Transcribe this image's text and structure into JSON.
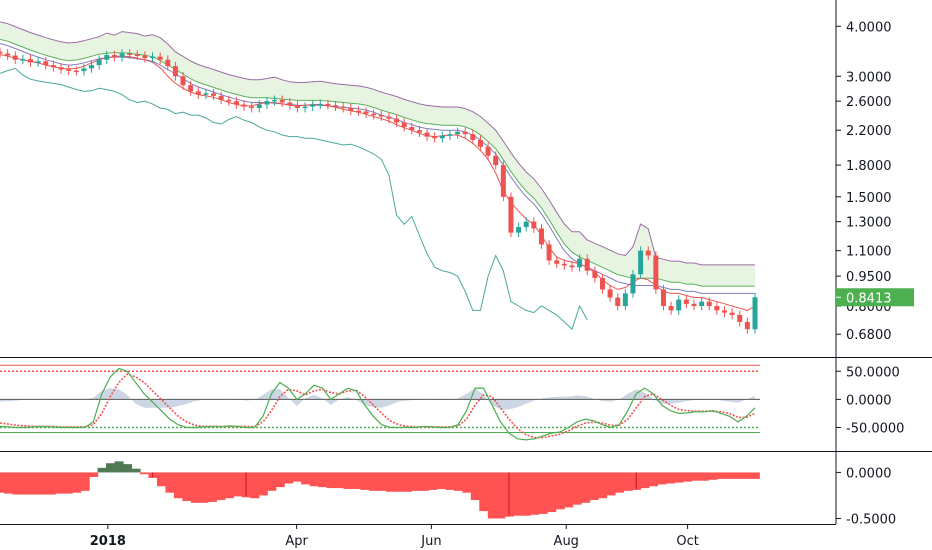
{
  "chart_data": [
    {
      "pane": "price",
      "type": "candlestick",
      "scale": "log",
      "ylim": [
        0.6,
        4.6
      ],
      "y_ticks": [
        "4.0000",
        "3.0000",
        "2.6000",
        "2.2000",
        "1.8000",
        "1.5000",
        "1.3000",
        "1.1000",
        "0.9500",
        "0.8000",
        "0.6800"
      ],
      "y_tick_values": [
        4.0,
        3.0,
        2.6,
        2.2,
        1.8,
        1.5,
        1.3,
        1.1,
        0.95,
        0.8,
        0.68
      ],
      "last_price_label": "0.8413",
      "last_price": 0.8413,
      "colors": {
        "up": "#26a69a",
        "down": "#ef5350",
        "cloud": "#dff0d8",
        "tenkan": "#ef5350",
        "kijun": "#7e7ec0",
        "lagging": "#4aa79a",
        "span_a": "#5ab15a",
        "span_b": "#9c6ca8",
        "price_tag": "#4caf50"
      },
      "candles_close": [
        3.42,
        3.38,
        3.3,
        3.31,
        3.25,
        3.27,
        3.2,
        3.16,
        3.12,
        3.1,
        3.09,
        3.14,
        3.2,
        3.3,
        3.39,
        3.35,
        3.42,
        3.4,
        3.38,
        3.33,
        3.36,
        3.3,
        3.18,
        3.0,
        2.85,
        2.75,
        2.7,
        2.72,
        2.68,
        2.62,
        2.6,
        2.55,
        2.52,
        2.5,
        2.55,
        2.6,
        2.62,
        2.58,
        2.54,
        2.5,
        2.52,
        2.55,
        2.56,
        2.54,
        2.52,
        2.5,
        2.46,
        2.45,
        2.42,
        2.4,
        2.38,
        2.35,
        2.3,
        2.24,
        2.2,
        2.17,
        2.12,
        2.1,
        2.13,
        2.15,
        2.18,
        2.15,
        2.08,
        2.0,
        1.9,
        1.8,
        1.5,
        1.22,
        1.26,
        1.3,
        1.25,
        1.14,
        1.04,
        1.02,
        1.01,
        1.0,
        1.05,
        0.98,
        0.94,
        0.88,
        0.84,
        0.8,
        0.86,
        0.96,
        1.1,
        1.07,
        0.88,
        0.8,
        0.78,
        0.83,
        0.81,
        0.8,
        0.82,
        0.8,
        0.78,
        0.77,
        0.76,
        0.73,
        0.7,
        0.8413
      ],
      "tenkan": [
        3.4,
        3.37,
        3.33,
        3.3,
        3.27,
        3.24,
        3.2,
        3.17,
        3.14,
        3.13,
        3.14,
        3.18,
        3.24,
        3.3,
        3.34,
        3.36,
        3.37,
        3.36,
        3.33,
        3.3,
        3.25,
        3.15,
        3.0,
        2.88,
        2.8,
        2.74,
        2.7,
        2.68,
        2.66,
        2.62,
        2.58,
        2.55,
        2.53,
        2.53,
        2.56,
        2.58,
        2.58,
        2.56,
        2.54,
        2.53,
        2.54,
        2.55,
        2.55,
        2.53,
        2.51,
        2.48,
        2.46,
        2.44,
        2.41,
        2.38,
        2.35,
        2.32,
        2.27,
        2.23,
        2.2,
        2.16,
        2.13,
        2.12,
        2.13,
        2.14,
        2.14,
        2.1,
        2.04,
        1.96,
        1.86,
        1.72,
        1.55,
        1.45,
        1.38,
        1.32,
        1.28,
        1.2,
        1.12,
        1.06,
        1.04,
        1.03,
        1.02,
        1.0,
        0.97,
        0.93,
        0.9,
        0.88,
        0.89,
        0.92,
        0.94,
        0.93,
        0.9,
        0.87,
        0.86,
        0.86,
        0.85,
        0.84,
        0.84,
        0.83,
        0.82,
        0.81,
        0.8,
        0.79,
        0.78,
        0.8
      ],
      "kijun": [
        3.62,
        3.58,
        3.52,
        3.46,
        3.4,
        3.35,
        3.3,
        3.26,
        3.22,
        3.2,
        3.21,
        3.24,
        3.28,
        3.32,
        3.34,
        3.35,
        3.35,
        3.34,
        3.32,
        3.3,
        3.27,
        3.2,
        3.12,
        3.04,
        2.96,
        2.88,
        2.82,
        2.78,
        2.74,
        2.7,
        2.66,
        2.63,
        2.6,
        2.58,
        2.58,
        2.58,
        2.57,
        2.56,
        2.55,
        2.54,
        2.54,
        2.54,
        2.54,
        2.53,
        2.52,
        2.51,
        2.5,
        2.49,
        2.47,
        2.44,
        2.4,
        2.37,
        2.34,
        2.3,
        2.27,
        2.24,
        2.22,
        2.21,
        2.2,
        2.2,
        2.2,
        2.18,
        2.14,
        2.08,
        2.0,
        1.92,
        1.8,
        1.68,
        1.58,
        1.5,
        1.44,
        1.36,
        1.27,
        1.18,
        1.1,
        1.05,
        1.02,
        1.0,
        0.98,
        0.96,
        0.94,
        0.92,
        0.91,
        0.9,
        0.9,
        0.9,
        0.9,
        0.89,
        0.88,
        0.88,
        0.87,
        0.87,
        0.86,
        0.86,
        0.86,
        0.86,
        0.86,
        0.86,
        0.86,
        0.86
      ],
      "lagging": [
        3.05,
        3.1,
        3.14,
        3.02,
        2.95,
        2.92,
        2.9,
        2.88,
        2.86,
        2.82,
        2.78,
        2.75,
        2.76,
        2.8,
        2.78,
        2.75,
        2.7,
        2.62,
        2.58,
        2.6,
        2.56,
        2.5,
        2.48,
        2.42,
        2.44,
        2.4,
        2.4,
        2.36,
        2.3,
        2.28,
        2.34,
        2.38,
        2.33,
        2.3,
        2.24,
        2.2,
        2.18,
        2.14,
        2.12,
        2.12,
        2.1,
        2.1,
        2.08,
        2.06,
        2.04,
        2.02,
        2.03,
        2.0,
        1.96,
        1.92,
        1.86,
        1.7,
        1.35,
        1.28,
        1.34,
        1.2,
        1.08,
        1.0,
        0.98,
        0.97,
        0.95,
        0.87,
        0.78,
        0.78,
        0.95,
        1.07,
        0.98,
        0.82,
        0.8,
        0.78,
        0.77,
        0.8,
        0.78,
        0.76,
        0.73,
        0.7,
        0.8,
        0.74
      ]
    },
    {
      "pane": "oscillator",
      "type": "line",
      "y_ticks": [
        "50.0000",
        "0.0000",
        "-50.0000"
      ],
      "y_tick_values": [
        50,
        0,
        -50
      ],
      "ylim": [
        -90,
        70
      ],
      "upper_band": 50,
      "lower_band": -50,
      "colors": {
        "fast": "#4caf50",
        "slow": "#ef5350",
        "hist": "#b8c4d8",
        "bands": "#ef5350",
        "zero": "#555555"
      },
      "fast": [
        -48,
        -49,
        -50,
        -50,
        -49,
        -48,
        -49,
        -50,
        -50,
        -50,
        -50,
        -40,
        10,
        40,
        55,
        50,
        30,
        10,
        -5,
        -20,
        -35,
        -45,
        -50,
        -50,
        -49,
        -48,
        -49,
        -47,
        -48,
        -50,
        -50,
        -30,
        10,
        30,
        20,
        0,
        10,
        25,
        20,
        0,
        10,
        20,
        15,
        -10,
        -30,
        -45,
        -50,
        -50,
        -50,
        -50,
        -48,
        -49,
        -50,
        -50,
        -45,
        -20,
        20,
        20,
        -10,
        -40,
        -60,
        -70,
        -72,
        -70,
        -65,
        -60,
        -58,
        -50,
        -40,
        -35,
        -38,
        -45,
        -50,
        -45,
        -20,
        10,
        20,
        10,
        -10,
        -20,
        -25,
        -24,
        -22,
        -22,
        -20,
        -25,
        -30,
        -40,
        -30,
        -15
      ],
      "slow": [
        -42,
        -44,
        -46,
        -47,
        -48,
        -48,
        -48,
        -49,
        -49,
        -49,
        -49,
        -45,
        -25,
        5,
        30,
        45,
        40,
        30,
        15,
        0,
        -15,
        -30,
        -40,
        -46,
        -48,
        -48,
        -48,
        -48,
        -48,
        -48,
        -49,
        -40,
        -20,
        5,
        18,
        15,
        8,
        15,
        18,
        12,
        10,
        15,
        16,
        5,
        -10,
        -25,
        -38,
        -45,
        -48,
        -49,
        -49,
        -49,
        -49,
        -49,
        -47,
        -35,
        -10,
        8,
        5,
        -15,
        -35,
        -52,
        -63,
        -68,
        -68,
        -65,
        -62,
        -56,
        -48,
        -42,
        -40,
        -42,
        -46,
        -46,
        -35,
        -15,
        5,
        10,
        0,
        -10,
        -18,
        -20,
        -21,
        -21,
        -21,
        -22,
        -25,
        -32,
        -32,
        -25
      ],
      "hist": [
        -4,
        -3,
        -2,
        -1,
        0,
        1,
        0,
        0,
        0,
        0,
        0,
        3,
        15,
        20,
        18,
        8,
        -8,
        -15,
        -15,
        -15,
        -15,
        -12,
        -8,
        -3,
        -1,
        0,
        -1,
        1,
        0,
        -2,
        -1,
        8,
        18,
        18,
        3,
        -12,
        2,
        8,
        2,
        -10,
        0,
        4,
        -1,
        -10,
        -14,
        -15,
        -10,
        -4,
        -2,
        -1,
        1,
        0,
        -1,
        -1,
        2,
        10,
        20,
        8,
        -10,
        -18,
        -18,
        -14,
        -8,
        -2,
        2,
        4,
        5,
        5,
        7,
        6,
        1,
        -3,
        -4,
        0,
        10,
        18,
        12,
        0,
        -8,
        -8,
        -6,
        -3,
        -1,
        -1,
        1,
        -2,
        -4,
        -6,
        0,
        6
      ]
    },
    {
      "pane": "histogram",
      "type": "bar",
      "y_ticks": [
        "0.0000",
        "-0.5000"
      ],
      "y_tick_values": [
        0,
        -0.5
      ],
      "ylim": [
        -0.56,
        0.2
      ],
      "colors": {
        "positive": "#4f7a55",
        "negative": "#ff5252"
      },
      "values": [
        -0.22,
        -0.23,
        -0.24,
        -0.24,
        -0.24,
        -0.24,
        -0.24,
        -0.23,
        -0.23,
        -0.22,
        -0.2,
        -0.05,
        0.05,
        0.1,
        0.12,
        0.09,
        0.04,
        -0.02,
        -0.06,
        -0.15,
        -0.22,
        -0.28,
        -0.31,
        -0.33,
        -0.33,
        -0.32,
        -0.3,
        -0.28,
        -0.26,
        -0.27,
        -0.28,
        -0.25,
        -0.2,
        -0.16,
        -0.12,
        -0.1,
        -0.13,
        -0.15,
        -0.16,
        -0.17,
        -0.17,
        -0.18,
        -0.18,
        -0.19,
        -0.2,
        -0.2,
        -0.21,
        -0.21,
        -0.21,
        -0.2,
        -0.2,
        -0.19,
        -0.18,
        -0.19,
        -0.2,
        -0.22,
        -0.3,
        -0.42,
        -0.5,
        -0.5,
        -0.48,
        -0.47,
        -0.47,
        -0.46,
        -0.45,
        -0.43,
        -0.4,
        -0.38,
        -0.35,
        -0.33,
        -0.3,
        -0.28,
        -0.25,
        -0.22,
        -0.2,
        -0.19,
        -0.17,
        -0.15,
        -0.13,
        -0.12,
        -0.11,
        -0.1,
        -0.09,
        -0.09,
        -0.08,
        -0.07,
        -0.07,
        -0.07,
        -0.07,
        -0.07
      ]
    }
  ],
  "x_axis": {
    "labels": [
      {
        "text": "2018",
        "bold": true,
        "index": 8
      },
      {
        "text": "Apr",
        "bold": false,
        "index": 22
      },
      {
        "text": "Jun",
        "bold": false,
        "index": 32
      },
      {
        "text": "Aug",
        "bold": false,
        "index": 42
      },
      {
        "text": "Oct",
        "bold": false,
        "index": 51
      }
    ]
  }
}
